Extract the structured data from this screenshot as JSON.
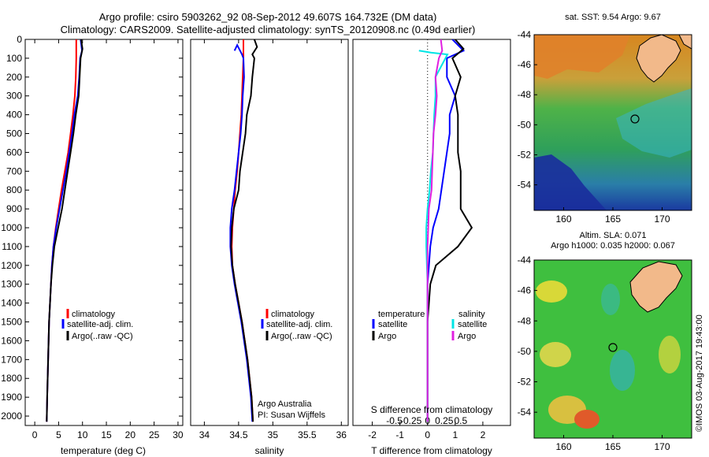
{
  "header": {
    "title_line1": "Argo profile: csiro 5903262_92 08-Sep-2012 49.607S 164.732E (DM data)",
    "title_line2": "Climatology: CARS2009. Satellite-adjusted climatology: synTS_20120908.nc (0.49d earlier)"
  },
  "colors": {
    "climatology": "#ff0000",
    "satellite": "#0000ff",
    "argo": "#000000",
    "s_satellite": "#00e5e5",
    "s_argo": "#e020e0"
  },
  "panels": {
    "temperature": {
      "xlabel": "temperature (deg C)",
      "legend": [
        "climatology",
        "satellite-adj. clim.",
        "Argo(..raw -QC)"
      ]
    },
    "salinity": {
      "xlabel": "salinity",
      "legend": [
        "climatology",
        "satellite-adj. clim.",
        "Argo(..raw -QC)"
      ],
      "credit_line1": "Argo Australia",
      "credit_line2": "PI: Susan Wijffels"
    },
    "difference": {
      "xlabel_bottom": "T difference from climatology",
      "xlabel_top": "S difference from climatology",
      "legend_temperature_heading": "temperature",
      "legend_salinity_heading": "salinity",
      "legend_satellite": "satellite",
      "legend_argo": "Argo"
    },
    "sst_map": {
      "title": "sat. SST: 9.54  Argo: 9.67"
    },
    "sla_map": {
      "title_line1": "Altim. SLA: 0.071",
      "title_line2": "Argo h1000: 0.035 h2000: 0.067"
    }
  },
  "watermark": "©IMOS 03-Aug-2017 19:43:00",
  "chart_data": [
    {
      "type": "line",
      "title": "",
      "xlabel": "temperature (deg C)",
      "ylabel": "",
      "xlim": [
        -2,
        31
      ],
      "ylim": [
        2050,
        0
      ],
      "x_ticks": [
        0,
        5,
        10,
        15,
        20,
        25,
        30
      ],
      "y_ticks": [
        0,
        100,
        200,
        300,
        400,
        500,
        600,
        700,
        800,
        900,
        1000,
        1100,
        1200,
        1300,
        1400,
        1500,
        1600,
        1700,
        1800,
        1900,
        2000
      ],
      "series": [
        {
          "name": "climatology",
          "color": "#ff0000",
          "points": [
            [
              8.7,
              0
            ],
            [
              8.7,
              100
            ],
            [
              8.6,
              200
            ],
            [
              8.4,
              300
            ],
            [
              8.0,
              400
            ],
            [
              7.5,
              500
            ],
            [
              7.0,
              600
            ],
            [
              6.3,
              700
            ],
            [
              5.6,
              800
            ],
            [
              5.0,
              900
            ],
            [
              4.4,
              1000
            ],
            [
              3.9,
              1100
            ],
            [
              3.6,
              1200
            ],
            [
              3.4,
              1300
            ],
            [
              3.2,
              1400
            ],
            [
              3.0,
              1500
            ],
            [
              2.9,
              1600
            ],
            [
              2.8,
              1700
            ],
            [
              2.7,
              1800
            ],
            [
              2.6,
              1900
            ],
            [
              2.5,
              2030
            ]
          ]
        },
        {
          "name": "satellite-adj. clim.",
          "color": "#0000ff",
          "points": [
            [
              9.6,
              0
            ],
            [
              9.9,
              60
            ],
            [
              9.5,
              100
            ],
            [
              9.3,
              200
            ],
            [
              9.0,
              300
            ],
            [
              8.3,
              400
            ],
            [
              7.8,
              500
            ],
            [
              7.2,
              600
            ],
            [
              6.6,
              700
            ],
            [
              5.9,
              800
            ],
            [
              5.2,
              900
            ],
            [
              4.5,
              1000
            ],
            [
              3.9,
              1100
            ],
            [
              3.6,
              1200
            ],
            [
              3.4,
              1300
            ],
            [
              3.2,
              1400
            ],
            [
              3.0,
              1500
            ],
            [
              2.9,
              1600
            ],
            [
              2.8,
              1700
            ],
            [
              2.7,
              1800
            ],
            [
              2.6,
              1900
            ],
            [
              2.5,
              2030
            ]
          ]
        },
        {
          "name": "Argo(..raw -QC)",
          "color": "#000000",
          "points": [
            [
              9.7,
              0
            ],
            [
              10.0,
              50
            ],
            [
              9.6,
              100
            ],
            [
              9.4,
              200
            ],
            [
              9.2,
              300
            ],
            [
              8.6,
              400
            ],
            [
              8.1,
              500
            ],
            [
              7.5,
              600
            ],
            [
              6.9,
              700
            ],
            [
              6.3,
              800
            ],
            [
              5.7,
              900
            ],
            [
              4.9,
              1000
            ],
            [
              4.1,
              1100
            ],
            [
              3.7,
              1200
            ],
            [
              3.4,
              1300
            ],
            [
              3.2,
              1400
            ],
            [
              3.0,
              1500
            ],
            [
              2.9,
              1600
            ],
            [
              2.8,
              1700
            ],
            [
              2.7,
              1800
            ],
            [
              2.6,
              1900
            ],
            [
              2.5,
              2030
            ]
          ]
        }
      ]
    },
    {
      "type": "line",
      "title": "",
      "xlabel": "salinity",
      "ylabel": "",
      "xlim": [
        33.8,
        36.1
      ],
      "ylim": [
        2050,
        0
      ],
      "x_ticks": [
        34,
        34.5,
        35,
        35.5,
        36
      ],
      "series": [
        {
          "name": "climatology",
          "color": "#ff0000",
          "points": [
            [
              34.57,
              0
            ],
            [
              34.57,
              100
            ],
            [
              34.56,
              200
            ],
            [
              34.55,
              300
            ],
            [
              34.54,
              400
            ],
            [
              34.52,
              500
            ],
            [
              34.5,
              600
            ],
            [
              34.48,
              700
            ],
            [
              34.45,
              800
            ],
            [
              34.43,
              900
            ],
            [
              34.41,
              1000
            ],
            [
              34.4,
              1100
            ],
            [
              34.41,
              1200
            ],
            [
              34.45,
              1300
            ],
            [
              34.5,
              1400
            ],
            [
              34.55,
              1500
            ],
            [
              34.59,
              1600
            ],
            [
              34.63,
              1700
            ],
            [
              34.66,
              1800
            ],
            [
              34.69,
              1900
            ],
            [
              34.71,
              2030
            ]
          ]
        },
        {
          "name": "satellite-adj. clim.",
          "color": "#0000ff",
          "points": [
            [
              34.44,
              60
            ],
            [
              34.48,
              30
            ],
            [
              34.55,
              80
            ],
            [
              34.57,
              100
            ],
            [
              34.58,
              200
            ],
            [
              34.56,
              300
            ],
            [
              34.55,
              400
            ],
            [
              34.53,
              500
            ],
            [
              34.5,
              600
            ],
            [
              34.47,
              700
            ],
            [
              34.44,
              800
            ],
            [
              34.4,
              900
            ],
            [
              34.38,
              1000
            ],
            [
              34.38,
              1100
            ],
            [
              34.4,
              1200
            ],
            [
              34.44,
              1300
            ],
            [
              34.49,
              1400
            ],
            [
              34.54,
              1500
            ],
            [
              34.58,
              1600
            ],
            [
              34.62,
              1700
            ],
            [
              34.65,
              1800
            ],
            [
              34.68,
              1900
            ],
            [
              34.7,
              2030
            ]
          ]
        },
        {
          "name": "Argo(..raw -QC)",
          "color": "#000000",
          "points": [
            [
              34.73,
              0
            ],
            [
              34.77,
              40
            ],
            [
              34.7,
              80
            ],
            [
              34.73,
              100
            ],
            [
              34.7,
              200
            ],
            [
              34.68,
              300
            ],
            [
              34.62,
              400
            ],
            [
              34.6,
              500
            ],
            [
              34.56,
              600
            ],
            [
              34.52,
              700
            ],
            [
              34.5,
              800
            ],
            [
              34.43,
              900
            ],
            [
              34.4,
              1000
            ],
            [
              34.39,
              1100
            ],
            [
              34.41,
              1200
            ],
            [
              34.45,
              1300
            ],
            [
              34.5,
              1400
            ],
            [
              34.55,
              1500
            ],
            [
              34.59,
              1600
            ],
            [
              34.63,
              1700
            ],
            [
              34.66,
              1800
            ],
            [
              34.69,
              1900
            ],
            [
              34.71,
              2030
            ]
          ]
        }
      ]
    },
    {
      "type": "line",
      "title": "",
      "xlabel": "T difference from climatology",
      "ylabel": "",
      "xlim": [
        -2.7,
        3.0
      ],
      "ylim": [
        2050,
        0
      ],
      "x_ticks": [
        -2,
        -1,
        0,
        1,
        2
      ],
      "x2label": "S difference from climatology",
      "x2_ticks": [
        -0.5,
        -0.25,
        0,
        0.25,
        0.5
      ],
      "series": [
        {
          "name": "T satellite",
          "color": "#0000ff",
          "points": [
            [
              0.9,
              0
            ],
            [
              1.3,
              60
            ],
            [
              0.7,
              100
            ],
            [
              0.7,
              200
            ],
            [
              1.0,
              300
            ],
            [
              0.8,
              400
            ],
            [
              0.8,
              500
            ],
            [
              0.7,
              600
            ],
            [
              0.6,
              700
            ],
            [
              0.5,
              800
            ],
            [
              0.4,
              900
            ],
            [
              0.2,
              1000
            ],
            [
              0.1,
              1100
            ],
            [
              0.05,
              1200
            ],
            [
              0,
              1300
            ],
            [
              0,
              1500
            ],
            [
              0,
              1700
            ],
            [
              0,
              1900
            ],
            [
              0,
              2030
            ]
          ]
        },
        {
          "name": "T Argo",
          "color": "#000000",
          "points": [
            [
              1.0,
              0
            ],
            [
              1.3,
              50
            ],
            [
              0.9,
              100
            ],
            [
              1.2,
              200
            ],
            [
              1.0,
              300
            ],
            [
              1.1,
              400
            ],
            [
              1.1,
              500
            ],
            [
              1.1,
              600
            ],
            [
              1.2,
              700
            ],
            [
              1.2,
              800
            ],
            [
              1.2,
              900
            ],
            [
              1.6,
              1000
            ],
            [
              1.1,
              1100
            ],
            [
              0.3,
              1200
            ],
            [
              0.1,
              1300
            ],
            [
              0.05,
              1400
            ],
            [
              0,
              1500
            ],
            [
              0,
              1700
            ],
            [
              0,
              1900
            ],
            [
              0,
              2030
            ]
          ]
        },
        {
          "name": "S satellite",
          "color": "#00e5e5",
          "points": [
            [
              -0.13,
              60
            ],
            [
              0.05,
              70
            ],
            [
              0.3,
              80
            ],
            [
              0.12,
              200
            ],
            [
              0.12,
              300
            ],
            [
              0.1,
              400
            ],
            [
              0.09,
              500
            ],
            [
              0.08,
              600
            ],
            [
              0.05,
              700
            ],
            [
              0.03,
              800
            ],
            [
              0.0,
              900
            ],
            [
              -0.02,
              1000
            ],
            [
              -0.02,
              1100
            ],
            [
              0.0,
              1300
            ],
            [
              0,
              1600
            ],
            [
              0,
              1900
            ],
            [
              0,
              2030
            ]
          ]
        },
        {
          "name": "S Argo",
          "color": "#e020e0",
          "points": [
            [
              0.2,
              0
            ],
            [
              0.22,
              60
            ],
            [
              0.17,
              100
            ],
            [
              0.12,
              200
            ],
            [
              0.14,
              300
            ],
            [
              0.12,
              400
            ],
            [
              0.09,
              500
            ],
            [
              0.07,
              700
            ],
            [
              0.06,
              800
            ],
            [
              0.02,
              900
            ],
            [
              0.01,
              1000
            ],
            [
              0.0,
              1100
            ],
            [
              0,
              1300
            ],
            [
              0,
              1600
            ],
            [
              0,
              1900
            ],
            [
              0,
              2030
            ]
          ]
        }
      ]
    },
    {
      "type": "heatmap",
      "title": "sat. SST: 9.54  Argo: 9.67",
      "xlim": [
        157,
        173
      ],
      "ylim": [
        -55.7,
        -44
      ],
      "x_ticks": [
        160,
        165,
        170
      ],
      "y_ticks": [
        -44,
        -46,
        -48,
        -50,
        -52,
        -54
      ],
      "profile_location": [
        164.73,
        -49.6
      ]
    },
    {
      "type": "heatmap",
      "title": "Altim. SLA: 0.071",
      "xlim": [
        157,
        173
      ],
      "ylim": [
        -55.7,
        -44
      ],
      "x_ticks": [
        160,
        165,
        170
      ],
      "y_ticks": [
        -44,
        -46,
        -48,
        -50,
        -52,
        -54
      ],
      "profile_location": [
        164.73,
        -49.6
      ]
    }
  ]
}
